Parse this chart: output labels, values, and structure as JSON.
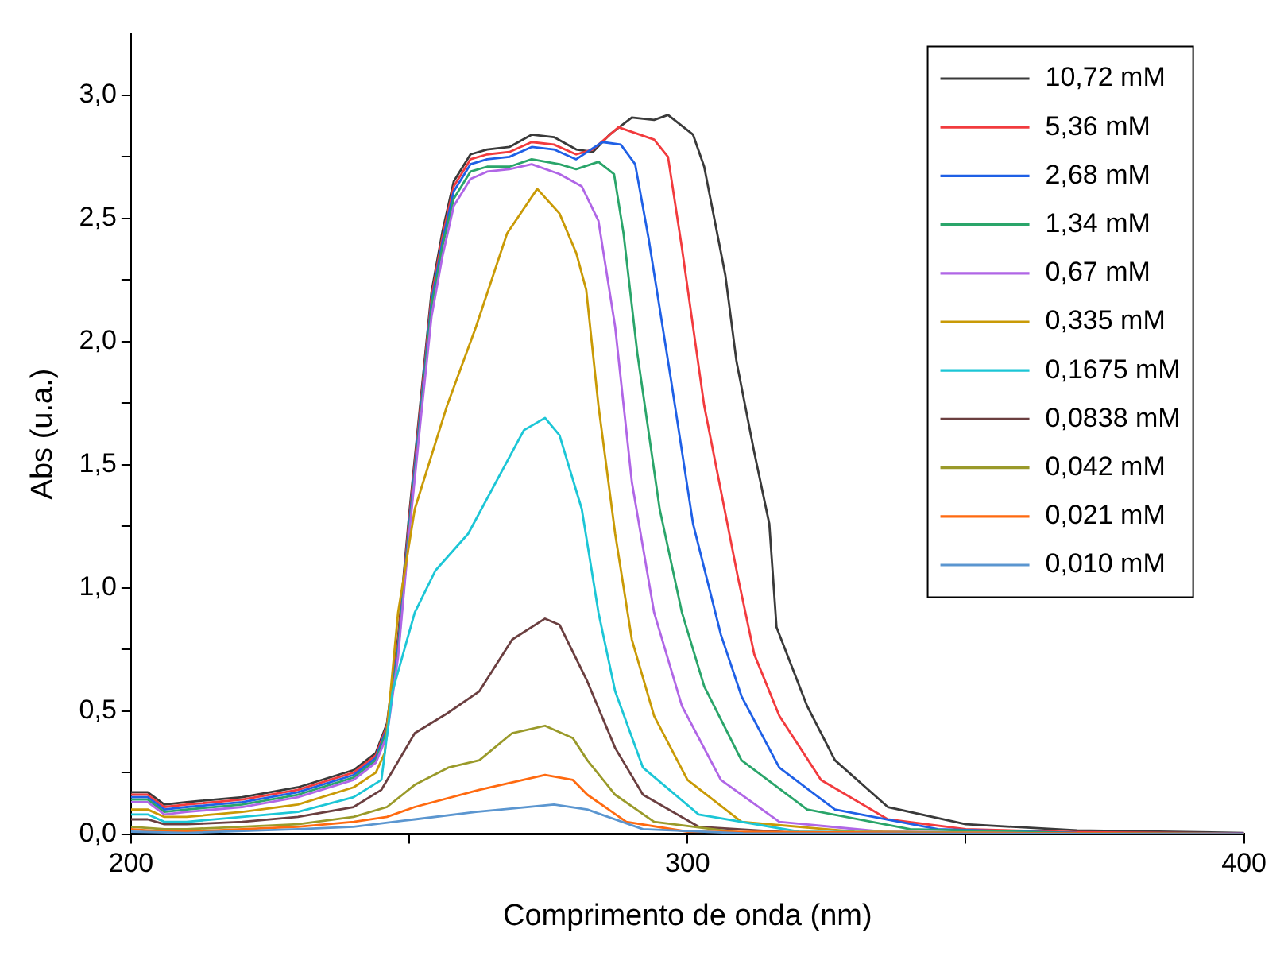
{
  "chart_data": {
    "type": "line",
    "xlabel": "Comprimento de onda (nm)",
    "ylabel": "Abs (u.a.)",
    "xlim": [
      200,
      400
    ],
    "xticks": [
      200,
      {
        "value": 250,
        "label": null
      },
      300,
      {
        "value": 350,
        "label": null
      },
      400
    ],
    "ylim": [
      0,
      3.25
    ],
    "yticks": [
      {
        "value": 0,
        "label": "0,0"
      },
      {
        "value": 0.25,
        "label": null
      },
      {
        "value": 0.5,
        "label": "0,5"
      },
      {
        "value": 0.75,
        "label": null
      },
      {
        "value": 1,
        "label": "1,0"
      },
      {
        "value": 1.25,
        "label": null
      },
      {
        "value": 1.5,
        "label": "1,5"
      },
      {
        "value": 1.75,
        "label": null
      },
      {
        "value": 2,
        "label": "2,0"
      },
      {
        "value": 2.25,
        "label": null
      },
      {
        "value": 2.5,
        "label": "2,5"
      },
      {
        "value": 2.75,
        "label": null
      },
      {
        "value": 3,
        "label": "3,0"
      }
    ],
    "legend": "top right",
    "line_style": "solid",
    "marker": "none",
    "series": [
      {
        "name": "10,72 mM",
        "color": "#3a3a3a",
        "x": [
          200,
          203,
          206,
          210,
          220,
          230,
          240,
          244,
          246,
          248,
          250,
          252,
          254,
          256,
          258,
          261,
          264,
          268,
          272,
          276,
          280,
          283,
          286,
          290,
          294,
          296.5,
          301,
          303,
          306.8,
          308.8,
          312,
          314.7,
          316,
          321.5,
          326.5,
          336,
          350,
          370,
          400
        ],
        "values": [
          0.17,
          0.17,
          0.12,
          0.13,
          0.15,
          0.19,
          0.26,
          0.33,
          0.45,
          0.8,
          1.3,
          1.75,
          2.2,
          2.45,
          2.65,
          2.76,
          2.78,
          2.79,
          2.84,
          2.83,
          2.78,
          2.77,
          2.84,
          2.91,
          2.9,
          2.92,
          2.84,
          2.71,
          2.27,
          1.92,
          1.55,
          1.26,
          0.84,
          0.52,
          0.3,
          0.11,
          0.04,
          0.015,
          0.005
        ]
      },
      {
        "name": "5,36 mM",
        "color": "#f23b3e",
        "x": [
          200,
          203,
          206,
          210,
          220,
          230,
          240,
          244,
          246,
          248,
          250,
          252,
          254,
          256,
          258,
          261,
          264,
          268,
          272,
          276,
          280,
          283,
          287.6,
          294,
          296.5,
          299,
          303,
          309,
          312,
          316.5,
          324,
          336,
          350,
          370,
          400
        ],
        "values": [
          0.16,
          0.16,
          0.11,
          0.12,
          0.14,
          0.18,
          0.25,
          0.32,
          0.44,
          0.78,
          1.28,
          1.73,
          2.18,
          2.43,
          2.63,
          2.74,
          2.76,
          2.77,
          2.81,
          2.8,
          2.76,
          2.78,
          2.87,
          2.82,
          2.75,
          2.38,
          1.74,
          1.05,
          0.73,
          0.48,
          0.22,
          0.06,
          0.02,
          0.008,
          0.003
        ]
      },
      {
        "name": "2,68 mM",
        "color": "#1f60e6",
        "x": [
          200,
          203,
          206,
          210,
          220,
          230,
          240,
          244,
          246,
          248,
          250,
          252,
          254,
          256,
          258,
          261,
          264,
          268,
          272,
          276,
          280,
          284.7,
          288,
          290.6,
          293,
          297,
          301,
          306,
          309.7,
          316.5,
          326.5,
          345,
          370,
          400
        ],
        "values": [
          0.15,
          0.15,
          0.1,
          0.11,
          0.13,
          0.17,
          0.24,
          0.31,
          0.43,
          0.76,
          1.26,
          1.71,
          2.16,
          2.41,
          2.61,
          2.72,
          2.74,
          2.75,
          2.79,
          2.78,
          2.74,
          2.81,
          2.8,
          2.72,
          2.42,
          1.85,
          1.26,
          0.81,
          0.56,
          0.27,
          0.1,
          0.02,
          0.005,
          0.002
        ]
      },
      {
        "name": "1,34 mM",
        "color": "#2aa56a",
        "x": [
          200,
          203,
          206,
          210,
          220,
          230,
          240,
          244,
          246,
          248,
          250,
          252,
          254,
          256,
          258,
          261,
          264,
          268,
          272,
          277,
          280,
          284,
          286.8,
          288.5,
          291,
          295,
          299,
          303,
          309.7,
          321.5,
          340,
          370,
          400
        ],
        "values": [
          0.14,
          0.14,
          0.09,
          0.1,
          0.12,
          0.16,
          0.23,
          0.3,
          0.42,
          0.74,
          1.24,
          1.69,
          2.14,
          2.39,
          2.58,
          2.69,
          2.71,
          2.71,
          2.74,
          2.72,
          2.7,
          2.73,
          2.68,
          2.44,
          1.95,
          1.32,
          0.9,
          0.6,
          0.3,
          0.1,
          0.02,
          0.004,
          0.001
        ]
      },
      {
        "name": "0,67 mM",
        "color": "#b066e6",
        "x": [
          200,
          203,
          206,
          210,
          220,
          230,
          240,
          244,
          246,
          248,
          250,
          252,
          254,
          256,
          258,
          261,
          264,
          268,
          272,
          277,
          281,
          284,
          287,
          290,
          294,
          299,
          306,
          316.5,
          335,
          370,
          400
        ],
        "values": [
          0.13,
          0.13,
          0.08,
          0.09,
          0.11,
          0.15,
          0.22,
          0.29,
          0.4,
          0.72,
          1.22,
          1.67,
          2.1,
          2.35,
          2.55,
          2.66,
          2.69,
          2.7,
          2.72,
          2.68,
          2.63,
          2.49,
          2.06,
          1.43,
          0.9,
          0.52,
          0.22,
          0.05,
          0.01,
          0.002,
          0.001
        ]
      },
      {
        "name": "0,335 mM",
        "color": "#c99a06",
        "x": [
          200,
          203,
          206,
          210,
          220,
          230,
          240,
          244,
          245.6,
          248,
          251,
          256.8,
          262,
          267.6,
          273,
          277,
          280,
          281.8,
          284,
          287,
          290,
          294,
          300,
          309.7,
          330,
          370,
          400
        ],
        "values": [
          0.1,
          0.1,
          0.07,
          0.07,
          0.09,
          0.12,
          0.19,
          0.25,
          0.33,
          0.9,
          1.32,
          1.74,
          2.06,
          2.44,
          2.62,
          2.52,
          2.36,
          2.21,
          1.74,
          1.22,
          0.79,
          0.48,
          0.22,
          0.05,
          0.01,
          0.002,
          0.001
        ]
      },
      {
        "name": "0,1675 mM",
        "color": "#1cc6d6",
        "x": [
          200,
          203,
          206,
          210,
          220,
          230,
          240,
          245,
          247,
          251,
          254.7,
          260.6,
          265.6,
          270.6,
          274.4,
          277,
          281,
          284,
          287,
          292,
          302,
          320,
          370,
          400
        ],
        "values": [
          0.08,
          0.08,
          0.05,
          0.05,
          0.07,
          0.09,
          0.15,
          0.22,
          0.58,
          0.9,
          1.07,
          1.22,
          1.43,
          1.64,
          1.69,
          1.62,
          1.32,
          0.9,
          0.58,
          0.27,
          0.08,
          0.01,
          0.001,
          0
        ]
      },
      {
        "name": "0,0838 mM",
        "color": "#6b3f40",
        "x": [
          200,
          203,
          206,
          210,
          220,
          230,
          240,
          245,
          251,
          256.8,
          262.6,
          268.5,
          274.4,
          277,
          282,
          287,
          292,
          302,
          320,
          400
        ],
        "values": [
          0.06,
          0.06,
          0.04,
          0.04,
          0.05,
          0.07,
          0.11,
          0.18,
          0.41,
          0.49,
          0.58,
          0.79,
          0.875,
          0.85,
          0.62,
          0.35,
          0.16,
          0.03,
          0.005,
          0
        ]
      },
      {
        "name": "0,042 mM",
        "color": "#9a9a2a",
        "x": [
          200,
          206,
          210,
          220,
          230,
          240,
          246,
          251,
          257,
          262.6,
          268.5,
          274.4,
          279.4,
          282,
          287,
          294,
          310,
          400
        ],
        "values": [
          0.03,
          0.02,
          0.02,
          0.03,
          0.04,
          0.07,
          0.11,
          0.2,
          0.27,
          0.3,
          0.41,
          0.44,
          0.39,
          0.3,
          0.16,
          0.05,
          0.005,
          0
        ]
      },
      {
        "name": "0,021 mM",
        "color": "#ff6a10",
        "x": [
          200,
          206,
          210,
          220,
          230,
          240,
          246,
          251,
          262.6,
          274.4,
          279.4,
          282,
          289,
          300,
          400
        ],
        "values": [
          0.02,
          0.01,
          0.01,
          0.02,
          0.03,
          0.05,
          0.07,
          0.11,
          0.18,
          0.24,
          0.22,
          0.16,
          0.05,
          0.01,
          0
        ]
      },
      {
        "name": "0,010 mM",
        "color": "#5b96d0",
        "x": [
          200,
          210,
          230,
          240,
          251,
          262,
          276,
          282,
          292,
          310,
          400
        ],
        "values": [
          0.01,
          0.005,
          0.02,
          0.03,
          0.06,
          0.09,
          0.12,
          0.1,
          0.02,
          0.003,
          0
        ]
      }
    ]
  }
}
